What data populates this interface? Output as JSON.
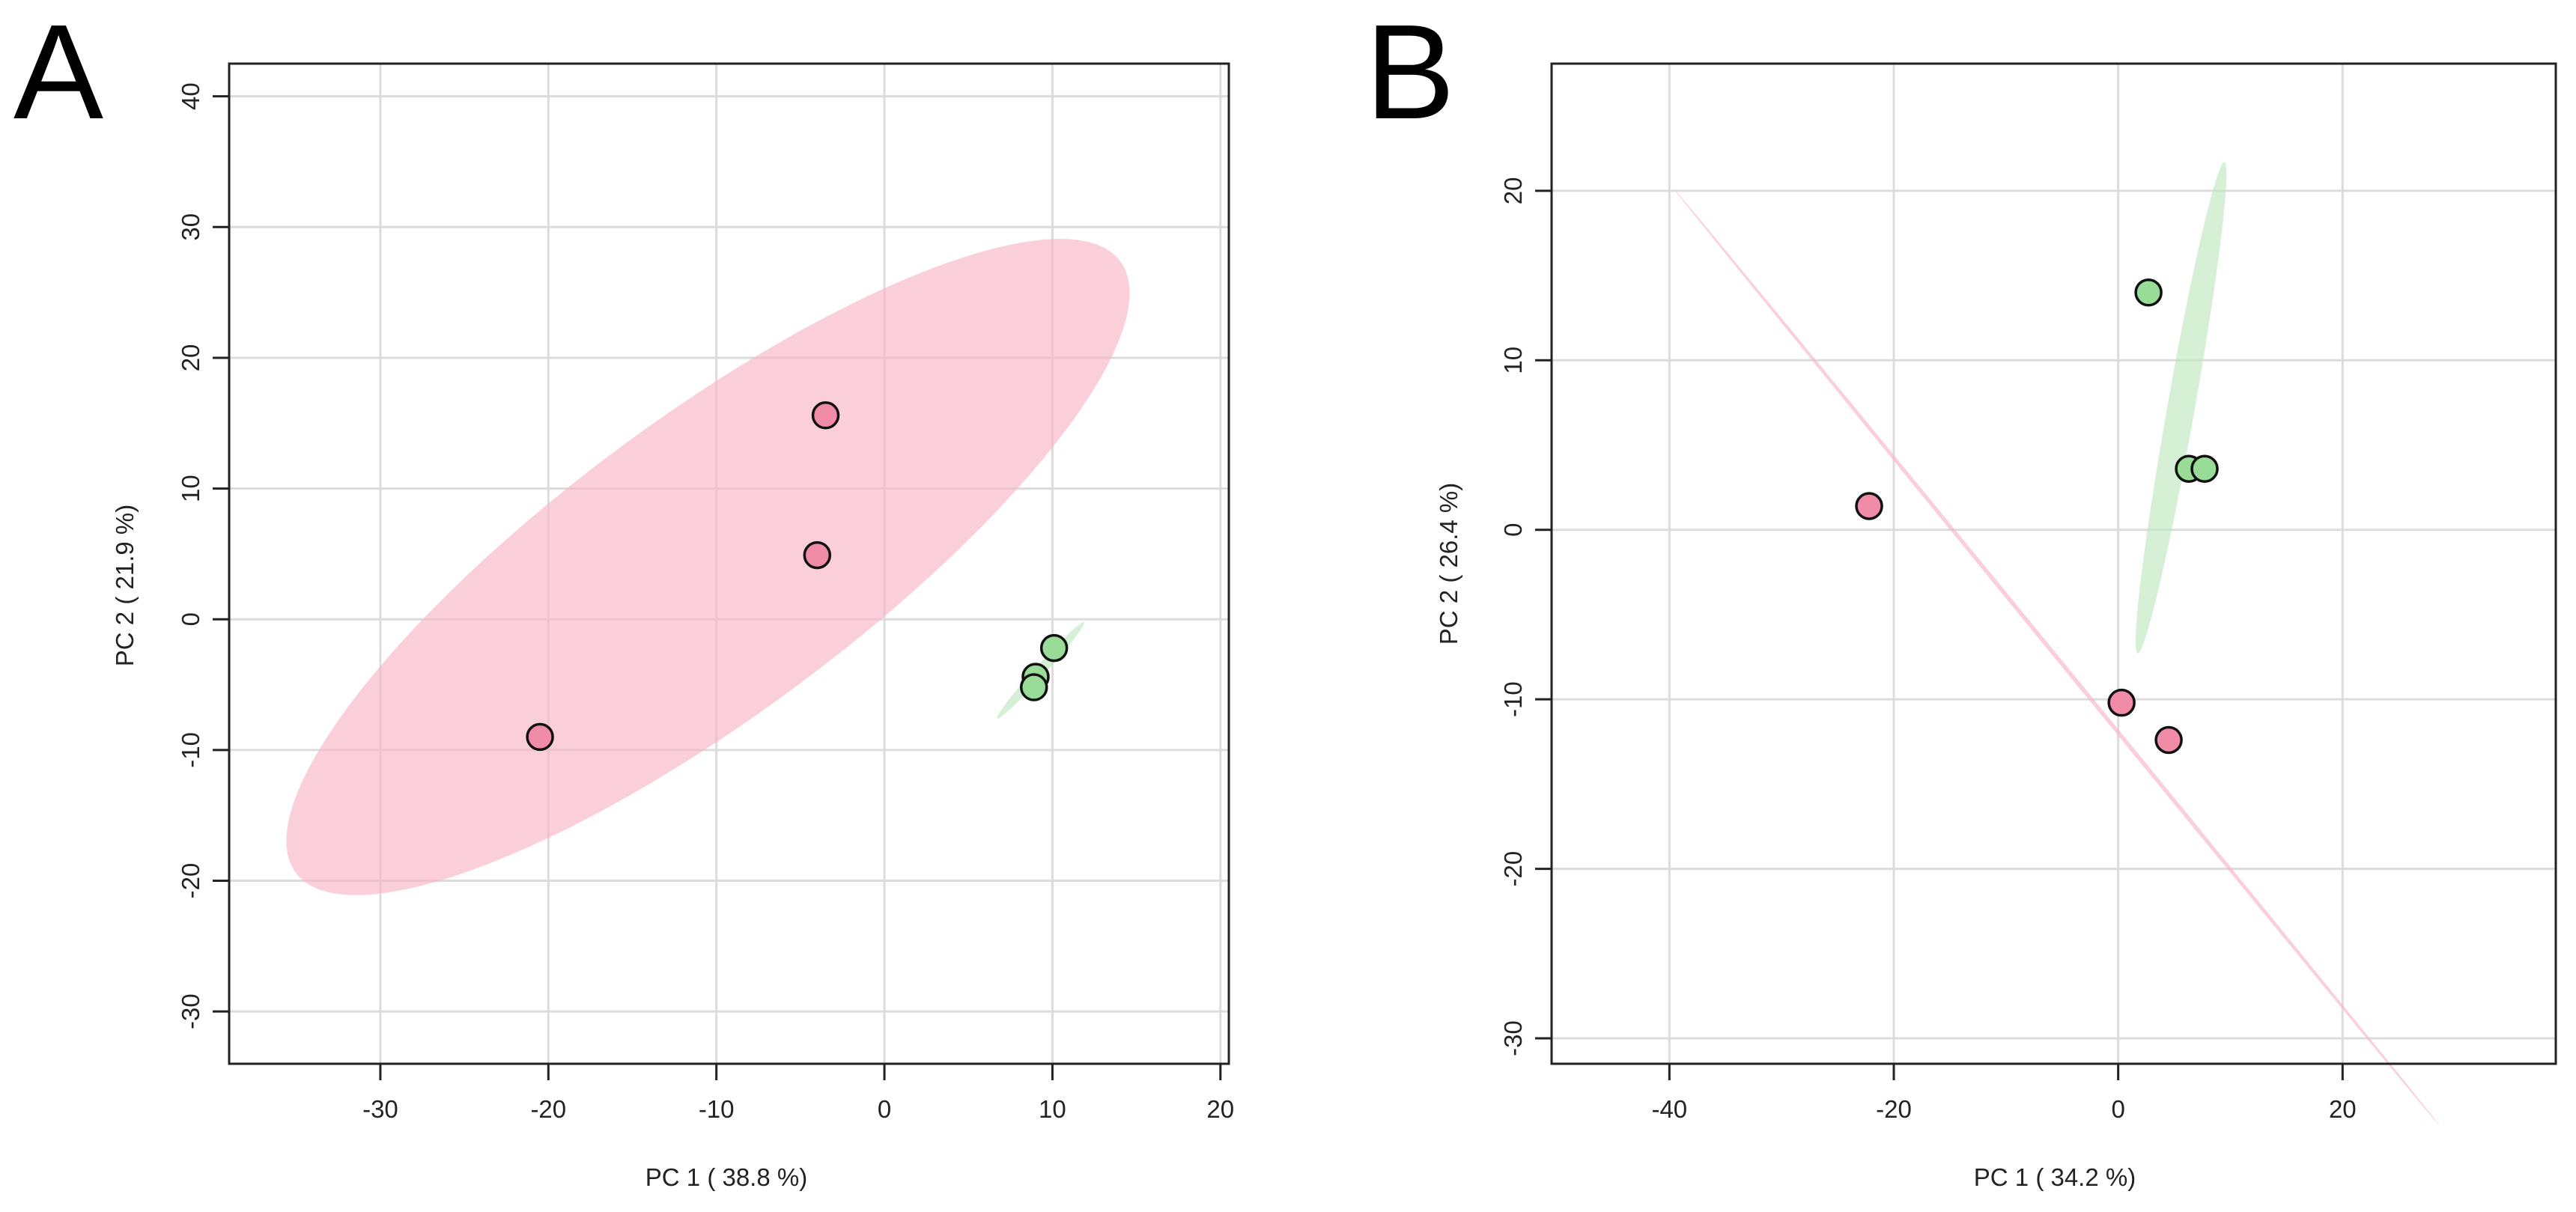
{
  "chart_data": [
    {
      "panel": "A",
      "type": "scatter",
      "xlabel": "PC 1 ( 38.8 %)",
      "ylabel": "PC 2 ( 21.9 %)",
      "xlim": [
        -39,
        20.5
      ],
      "ylim": [
        -34,
        42.5
      ],
      "xticks": [
        -30,
        -20,
        -10,
        0,
        10,
        20
      ],
      "yticks": [
        -30,
        -20,
        -10,
        0,
        10,
        20,
        30,
        40
      ],
      "grid": true,
      "groups": [
        {
          "color": "#f08ca8",
          "ellipse_color": "#f7b6c6",
          "points": [
            [
              -20.5,
              -9
            ],
            [
              -3.5,
              15.6
            ],
            [
              -4,
              4.9
            ]
          ],
          "ellipse": {
            "center": [
              -10.5,
              4
            ],
            "semi_axes": [
              34,
              10.2
            ],
            "angle_deg": 45
          }
        },
        {
          "color": "#98dc98",
          "ellipse_color": "#bfe8bf",
          "points": [
            [
              10.1,
              -2.2
            ],
            [
              9,
              -4.4
            ],
            [
              8.9,
              -5.2
            ]
          ],
          "ellipse": {
            "center": [
              9.3,
              -3.9
            ],
            "semi_axes": [
              4.5,
              0.35
            ],
            "angle_deg": 55
          }
        }
      ]
    },
    {
      "panel": "B",
      "type": "scatter",
      "xlabel": "PC 1 ( 34.2 %)",
      "ylabel": "PC 2 ( 26.4 %)",
      "xlim": [
        -50.5,
        39
      ],
      "ylim": [
        -31.5,
        27.5
      ],
      "xticks": [
        -40,
        -20,
        0,
        20
      ],
      "yticks": [
        -30,
        -20,
        -10,
        0,
        10,
        20
      ],
      "grid": true,
      "groups": [
        {
          "color": "#f08ca8",
          "ellipse_color": "#f7b6c6",
          "points": [
            [
              -22.2,
              1.4
            ],
            [
              0.3,
              -10.2
            ],
            [
              4.5,
              -12.4
            ]
          ],
          "ellipse": {
            "center": [
              -5.5,
              -7.5
            ],
            "semi_axes": [
              44,
              0.15
            ],
            "angle_deg": -39
          }
        },
        {
          "color": "#98dc98",
          "ellipse_color": "#bfe8bf",
          "points": [
            [
              2.7,
              14
            ],
            [
              6.3,
              3.6
            ],
            [
              7.7,
              3.6
            ]
          ],
          "ellipse": {
            "center": [
              5.6,
              7.2
            ],
            "semi_axes": [
              15,
              1.2
            ],
            "angle_deg": 75
          }
        }
      ]
    }
  ]
}
